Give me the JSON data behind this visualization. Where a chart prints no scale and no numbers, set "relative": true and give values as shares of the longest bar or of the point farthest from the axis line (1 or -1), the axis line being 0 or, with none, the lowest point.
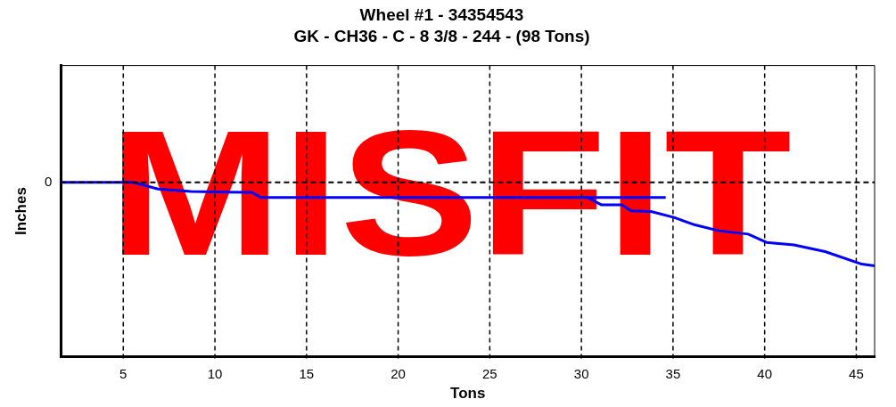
{
  "chart_data": {
    "type": "line",
    "title": "Wheel #1 - 34354543",
    "subtitle": "GK - CH36 - C - 8 3/8 - 244 - (98 Tons)",
    "xlabel": "Tons",
    "ylabel": "Inches",
    "relative": true,
    "xlim": [
      1.6,
      46
    ],
    "xticks": [
      5,
      10,
      15,
      20,
      25,
      30,
      35,
      40,
      45
    ],
    "grid": "x",
    "legend": false,
    "marker": "none",
    "line_style": "solid",
    "ref_lines": [
      {
        "axis": "y",
        "value": 0,
        "label": "0",
        "color": "#000000",
        "line_style": "dashed"
      }
    ],
    "annotations": [
      "MISFIT"
    ],
    "series": [
      {
        "color": "#0000ff",
        "x": [
          1.6,
          5.55,
          6.4,
          6.9,
          8.7,
          12.0,
          12.5,
          34.6
        ],
        "values": [
          0,
          0,
          -0.05,
          -0.08,
          -0.11,
          -0.12,
          -0.18,
          -0.18
        ]
      },
      {
        "color": "#0000ff",
        "x": [
          30.24,
          31.1,
          32.2,
          32.7,
          33.8,
          35.05,
          36.2,
          37.5,
          39.1,
          40.1,
          41.6,
          43.3,
          45.3,
          46
        ],
        "values": [
          -0.17,
          -0.27,
          -0.27,
          -0.34,
          -0.35,
          -0.42,
          -0.51,
          -0.58,
          -0.62,
          -0.72,
          -0.75,
          -0.83,
          -0.98,
          -1
        ]
      }
    ]
  }
}
